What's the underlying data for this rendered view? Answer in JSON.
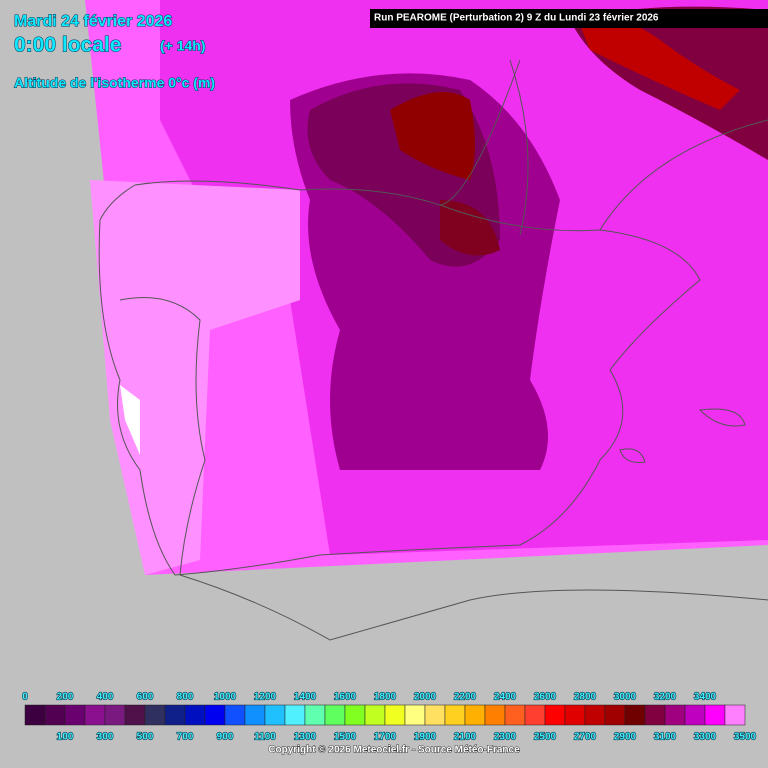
{
  "header": {
    "date": "Mardi 24 février 2026",
    "local_time": "0:00 locale",
    "lead_time": "(+ 14h)",
    "parameter": "Altitude de l'isotherme 0°c (m)",
    "run": "Run PEAROME (Perturbation 2) 9 Z du Lundi 23 février 2026"
  },
  "legend": {
    "items": [
      {
        "label": 0,
        "color": "#3c0040"
      },
      {
        "label": 100,
        "color": "#520052"
      },
      {
        "label": 200,
        "color": "#6a0070"
      },
      {
        "label": 300,
        "color": "#8a1090"
      },
      {
        "label": 400,
        "color": "#7a1a80"
      },
      {
        "label": 500,
        "color": "#50104a"
      },
      {
        "label": 600,
        "color": "#303060"
      },
      {
        "label": 700,
        "color": "#10208a"
      },
      {
        "label": 800,
        "color": "#0010c0"
      },
      {
        "label": 900,
        "color": "#0000f0"
      },
      {
        "label": 1000,
        "color": "#1050ff"
      },
      {
        "label": 1100,
        "color": "#1090ff"
      },
      {
        "label": 1200,
        "color": "#20c0ff"
      },
      {
        "label": 1300,
        "color": "#50f0ff"
      },
      {
        "label": 1400,
        "color": "#60ffb0"
      },
      {
        "label": 1500,
        "color": "#60ff60"
      },
      {
        "label": 1600,
        "color": "#80ff20"
      },
      {
        "label": 1700,
        "color": "#c0ff20"
      },
      {
        "label": 1800,
        "color": "#f0ff20"
      },
      {
        "label": 1900,
        "color": "#ffff80"
      },
      {
        "label": 2000,
        "color": "#ffe060"
      },
      {
        "label": 2100,
        "color": "#ffd020"
      },
      {
        "label": 2200,
        "color": "#ffb000"
      },
      {
        "label": 2300,
        "color": "#ff8000"
      },
      {
        "label": 2400,
        "color": "#ff6020"
      },
      {
        "label": 2500,
        "color": "#ff4030"
      },
      {
        "label": 2600,
        "color": "#ff0000"
      },
      {
        "label": 2700,
        "color": "#e00000"
      },
      {
        "label": 2800,
        "color": "#c00000"
      },
      {
        "label": 2900,
        "color": "#a00000"
      },
      {
        "label": 3000,
        "color": "#700000"
      },
      {
        "label": 3100,
        "color": "#800040"
      },
      {
        "label": 3200,
        "color": "#a00080"
      },
      {
        "label": 3300,
        "color": "#c000c0"
      },
      {
        "label": 3400,
        "color": "#ff00ff"
      },
      {
        "label": 3500,
        "color": "#ff80ff"
      }
    ]
  },
  "footer": {
    "copyright": "Copyright © 2026 Meteociel.fr - Source Météo-France"
  }
}
